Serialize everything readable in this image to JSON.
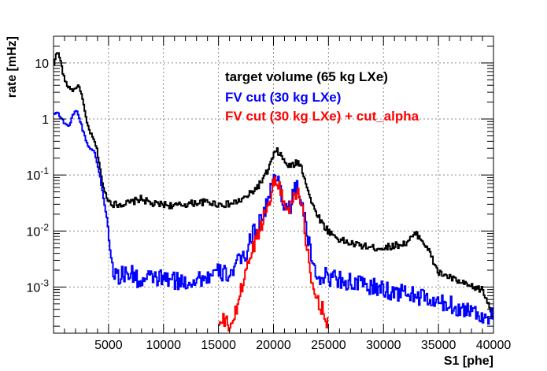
{
  "chart_data": {
    "type": "line",
    "xlabel": "S1 [phe]",
    "ylabel": "rate [mHz]",
    "xlim": [
      0,
      40000
    ],
    "ylim": [
      0.00015,
      30
    ],
    "ylog": true,
    "grid": true,
    "legend_position": "top-right",
    "x_ticks": [
      5000,
      10000,
      15000,
      20000,
      25000,
      30000,
      35000,
      40000
    ],
    "x_tick_labels": [
      "5000",
      "10000",
      "15000",
      "20000",
      "25000",
      "30000",
      "35000",
      "40000"
    ],
    "y_ticks": [
      {
        "value": 10,
        "base": "10",
        "exp": ""
      },
      {
        "value": 1,
        "base": "1",
        "exp": ""
      },
      {
        "value": 0.1,
        "base": "10",
        "exp": "-1"
      },
      {
        "value": 0.01,
        "base": "10",
        "exp": "-2"
      },
      {
        "value": 0.001,
        "base": "10",
        "exp": "-3"
      }
    ],
    "series": [
      {
        "name": "target volume (65 kg LXe)",
        "color": "#000000",
        "x": [
          0,
          300,
          600,
          900,
          1200,
          1500,
          1800,
          2100,
          2400,
          2700,
          3000,
          3300,
          3600,
          3900,
          4200,
          4500,
          5000,
          5500,
          6000,
          7000,
          8000,
          9000,
          10000,
          11000,
          12000,
          13000,
          14000,
          15000,
          16000,
          17000,
          17500,
          18000,
          18500,
          19000,
          19500,
          20000,
          20300,
          20600,
          21000,
          21500,
          22000,
          22300,
          22600,
          23000,
          23500,
          24000,
          24500,
          25000,
          26000,
          27000,
          28000,
          29000,
          30000,
          31000,
          32000,
          33000,
          33500,
          34000,
          34500,
          35000,
          36000,
          37000,
          38000,
          39000,
          40000
        ],
        "y": [
          8,
          17,
          12,
          6,
          4,
          3.6,
          3.2,
          3.8,
          3.7,
          2,
          0.9,
          0.6,
          0.45,
          0.32,
          0.15,
          0.06,
          0.035,
          0.03,
          0.03,
          0.032,
          0.038,
          0.03,
          0.03,
          0.028,
          0.03,
          0.032,
          0.033,
          0.03,
          0.03,
          0.035,
          0.04,
          0.048,
          0.06,
          0.08,
          0.12,
          0.22,
          0.27,
          0.24,
          0.17,
          0.14,
          0.16,
          0.17,
          0.13,
          0.07,
          0.03,
          0.02,
          0.013,
          0.01,
          0.007,
          0.006,
          0.0055,
          0.005,
          0.005,
          0.0055,
          0.006,
          0.009,
          0.007,
          0.005,
          0.003,
          0.0018,
          0.0015,
          0.0012,
          0.001,
          0.0009,
          0.0003
        ]
      },
      {
        "name": "FV cut (30 kg LXe)",
        "color": "#0000ff",
        "x": [
          0,
          300,
          600,
          900,
          1200,
          1500,
          1800,
          2100,
          2400,
          2700,
          3000,
          3300,
          3600,
          3900,
          4200,
          4500,
          4800,
          5000,
          5500,
          6000,
          7000,
          8000,
          9000,
          10000,
          11000,
          12000,
          13000,
          14000,
          15000,
          16000,
          17000,
          17500,
          18000,
          18500,
          19000,
          19500,
          20000,
          20300,
          20600,
          21000,
          21500,
          22000,
          22300,
          22600,
          23000,
          23500,
          24000,
          25000,
          26000,
          27000,
          28000,
          29000,
          30000,
          31000,
          32000,
          33000,
          34000,
          35000,
          36000,
          37000,
          38000,
          39000,
          40000
        ],
        "y": [
          1.2,
          1.4,
          1.1,
          0.9,
          0.8,
          0.75,
          1.3,
          1.4,
          1.0,
          0.6,
          0.4,
          0.3,
          0.28,
          0.2,
          0.1,
          0.045,
          0.02,
          0.01,
          0.0017,
          0.0016,
          0.0018,
          0.0012,
          0.0015,
          0.0014,
          0.0013,
          0.0012,
          0.0014,
          0.0015,
          0.0018,
          0.0017,
          0.003,
          0.004,
          0.008,
          0.012,
          0.018,
          0.035,
          0.08,
          0.09,
          0.07,
          0.025,
          0.028,
          0.055,
          0.06,
          0.03,
          0.01,
          0.003,
          0.0016,
          0.0015,
          0.0014,
          0.0012,
          0.0011,
          0.001,
          0.0009,
          0.0008,
          0.0008,
          0.0007,
          0.0006,
          0.0005,
          0.0005,
          0.0004,
          0.0004,
          0.0003,
          0.0003
        ]
      },
      {
        "name": "FV cut (30 kg LXe) + cut_alpha",
        "color": "#ff0000",
        "x": [
          15000,
          15500,
          16000,
          16500,
          17000,
          17500,
          18000,
          18500,
          19000,
          19500,
          20000,
          20300,
          20600,
          21000,
          21500,
          22000,
          22300,
          22600,
          23000,
          23500,
          24000,
          24500,
          25000
        ],
        "y": [
          0.0002,
          0.00025,
          0.0002,
          0.0003,
          0.0008,
          0.002,
          0.004,
          0.008,
          0.015,
          0.03,
          0.07,
          0.08,
          0.065,
          0.025,
          0.027,
          0.05,
          0.055,
          0.025,
          0.006,
          0.001,
          0.0006,
          0.0004,
          0.0002
        ]
      }
    ]
  }
}
